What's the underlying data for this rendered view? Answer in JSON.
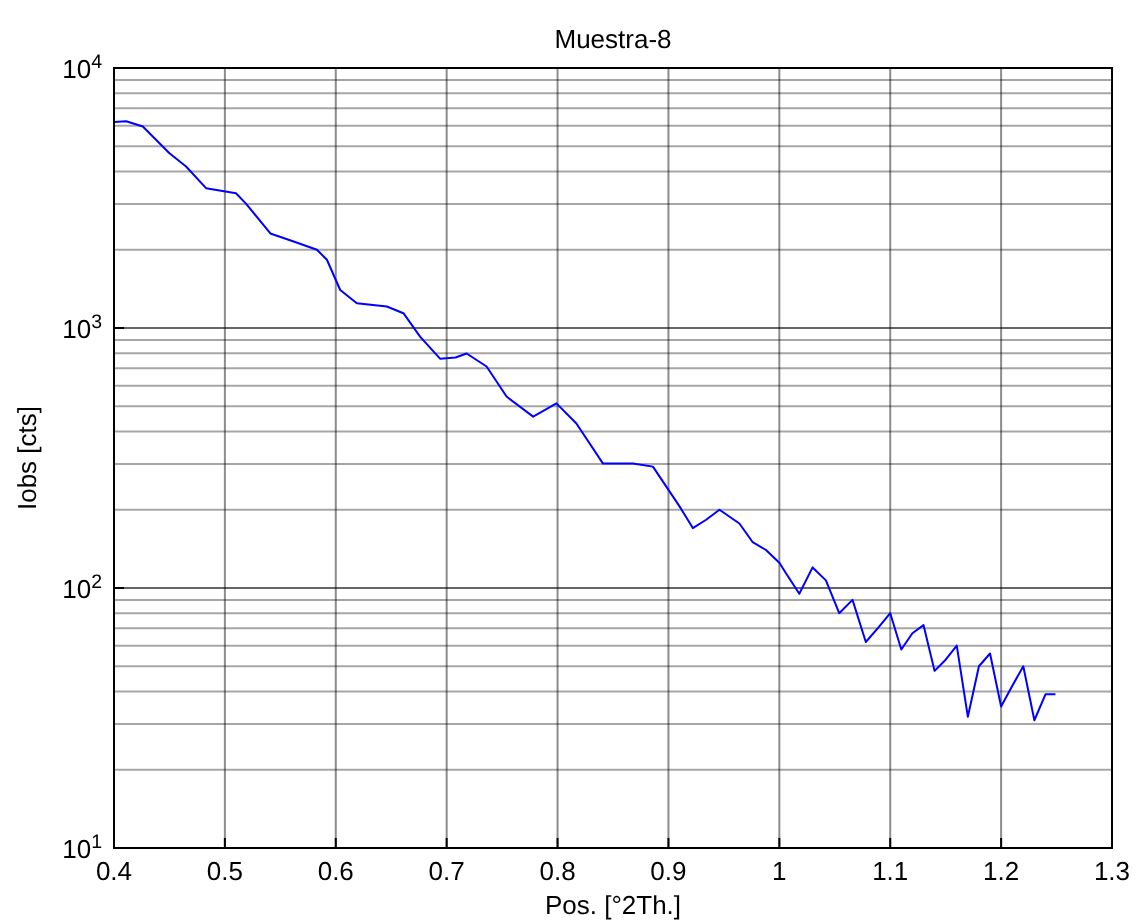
{
  "chart_data": {
    "type": "line",
    "title": "Muestra-8",
    "xlabel": "Pos. [°2Th.]",
    "ylabel": "Iobs [cts]",
    "log": "y",
    "grid": true,
    "line_style": "solid",
    "marker": "none",
    "xlim": [
      0.4,
      1.3
    ],
    "xticks": [
      0.4,
      0.5,
      0.6,
      0.7,
      0.8,
      0.9,
      1,
      1.1,
      1.2,
      1.3
    ],
    "ylim": [
      10,
      10000
    ],
    "yticks": [
      {
        "value": 10,
        "label": "10$^{1}$"
      },
      {
        "value": 100,
        "label": "10$^{2}$"
      },
      {
        "value": 1000,
        "label": "10$^{3}$"
      },
      {
        "value": 10000,
        "label": "10$^{4}$"
      }
    ],
    "series": [
      {
        "color": "#0000ff",
        "x": [
          0.4,
          0.411,
          0.426,
          0.45,
          0.465,
          0.483,
          0.51,
          0.519,
          0.541,
          0.562,
          0.583,
          0.592,
          0.604,
          0.619,
          0.646,
          0.661,
          0.676,
          0.694,
          0.708,
          0.718,
          0.736,
          0.754,
          0.778,
          0.799,
          0.817,
          0.841,
          0.868,
          0.886,
          0.91,
          0.922,
          0.934,
          0.946,
          0.964,
          0.976,
          0.988,
          1.0,
          1.006,
          1.018,
          1.03,
          1.042,
          1.054,
          1.066,
          1.078,
          1.09,
          1.1,
          1.11,
          1.12,
          1.13,
          1.14,
          1.15,
          1.16,
          1.17,
          1.18,
          1.19,
          1.2,
          1.21,
          1.22,
          1.23,
          1.24,
          1.249
        ],
        "values": [
          6200,
          6240,
          5960,
          4700,
          4180,
          3450,
          3300,
          3010,
          2310,
          2150,
          2000,
          1830,
          1400,
          1245,
          1210,
          1140,
          927,
          762,
          770,
          798,
          711,
          545,
          456,
          513,
          429,
          301,
          301,
          293,
          206,
          170,
          183,
          200,
          177,
          150,
          140,
          125,
          114,
          95,
          120,
          107,
          80,
          90,
          62,
          71,
          80,
          58,
          67,
          72,
          48,
          53,
          60,
          32,
          50,
          56,
          35,
          42,
          50,
          31,
          39,
          39
        ]
      }
    ]
  }
}
